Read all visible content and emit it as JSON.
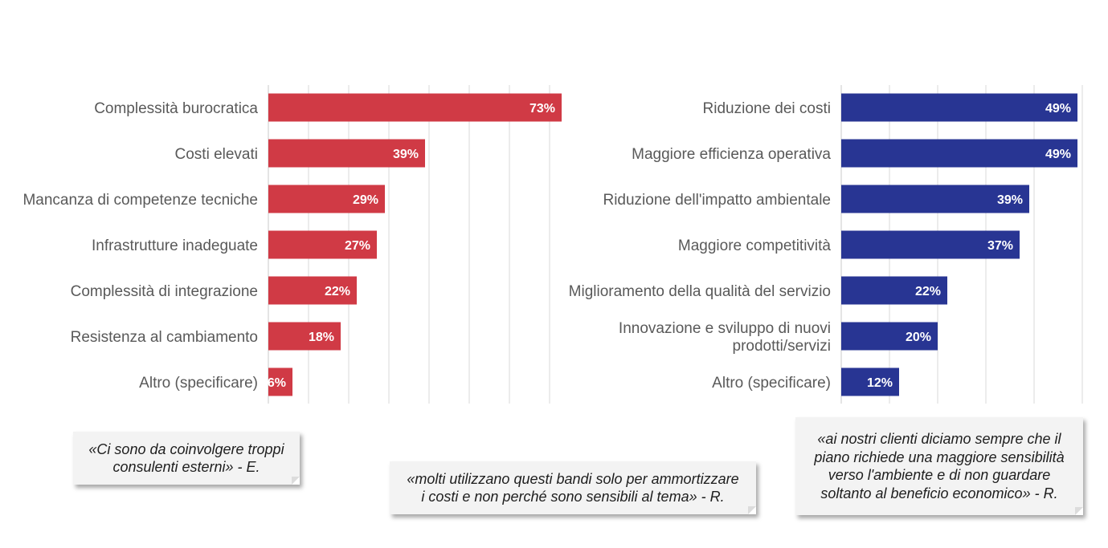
{
  "chart_data": [
    {
      "type": "bar",
      "orientation": "horizontal",
      "title": "",
      "categories": [
        [
          "Complessità burocratica"
        ],
        [
          "Costi elevati"
        ],
        [
          "Mancanza di competenze tecniche"
        ],
        [
          "Infrastrutture inadeguate"
        ],
        [
          "Complessità di integrazione"
        ],
        [
          "Resistenza al cambiamento"
        ],
        [
          "Altro (specificare)"
        ]
      ],
      "values": [
        73,
        39,
        29,
        27,
        22,
        18,
        6
      ],
      "value_labels": [
        "73%",
        "39%",
        "29%",
        "27%",
        "22%",
        "18%",
        "6%"
      ],
      "xlim": [
        0,
        80
      ],
      "grid": true,
      "color": "#d03a45"
    },
    {
      "type": "bar",
      "orientation": "horizontal",
      "title": "",
      "categories": [
        [
          "Riduzione dei costi"
        ],
        [
          "Maggiore efficienza operativa"
        ],
        [
          "Riduzione dell'impatto ambientale"
        ],
        [
          "Maggiore competitività"
        ],
        [
          "Miglioramento della qualità del servizio"
        ],
        [
          "Innovazione e sviluppo di nuovi",
          "prodotti/servizi"
        ],
        [
          "Altro (specificare)"
        ]
      ],
      "values": [
        49,
        49,
        39,
        37,
        22,
        20,
        12
      ],
      "value_labels": [
        "49%",
        "49%",
        "39%",
        "37%",
        "22%",
        "20%",
        "12%"
      ],
      "xlim": [
        0,
        50
      ],
      "grid": true,
      "color": "#283593"
    }
  ],
  "quotes": {
    "q1": [
      "«Ci sono da coinvolgere troppi",
      "consulenti esterni» - E."
    ],
    "q2": [
      "«molti utilizzano questi bandi solo per ammortizzare",
      "i costi e non perché sono sensibili al tema» - R."
    ],
    "q3": [
      "«ai nostri clienti diciamo sempre che il",
      "piano richiede una maggiore sensibilità",
      "verso l'ambiente e di non guardare",
      "soltanto al beneficio economico» - R."
    ]
  }
}
